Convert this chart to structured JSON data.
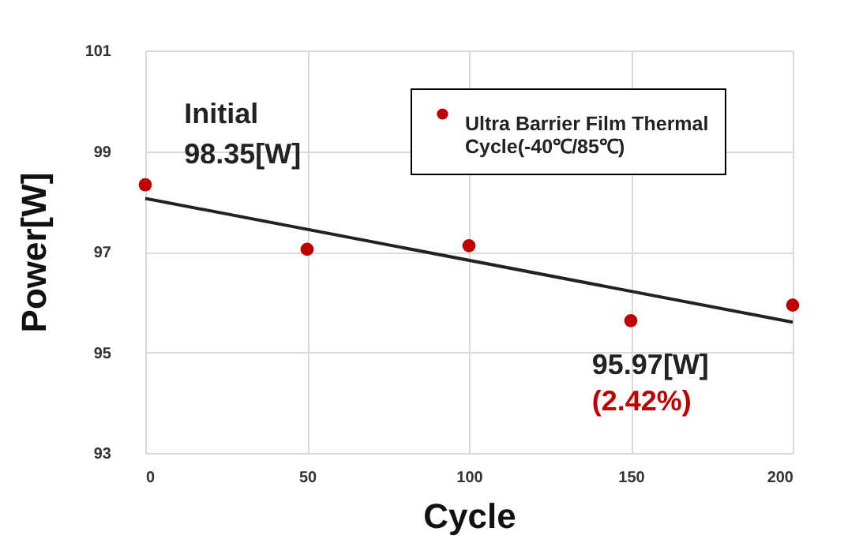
{
  "chart_data": {
    "type": "scatter",
    "xlabel": "Cycle",
    "ylabel": "Power[W]",
    "x": [
      0,
      50,
      100,
      150,
      200
    ],
    "series": [
      {
        "name": "Ultra Barrier Film Thermal Cycle(-40℃/85℃)",
        "color": "#c00000",
        "values": [
          98.33,
          97.05,
          97.12,
          95.63,
          95.94
        ]
      },
      {
        "type": "line",
        "marker": "none",
        "color": "#222222",
        "x": [
          0,
          200
        ],
        "values": [
          98.06,
          95.6
        ]
      }
    ],
    "xlim": [
      0,
      200
    ],
    "xticks": [
      0,
      50,
      100,
      150,
      200
    ],
    "ylim": [
      93,
      101
    ],
    "yticks": [
      93,
      95,
      97,
      99,
      101
    ],
    "grid": true,
    "legend": "top right",
    "marker": "circle",
    "line_style": "solid",
    "annotations": [
      "Initial",
      "98.35[W]",
      "95.97[W]",
      "(2.42%)"
    ]
  }
}
